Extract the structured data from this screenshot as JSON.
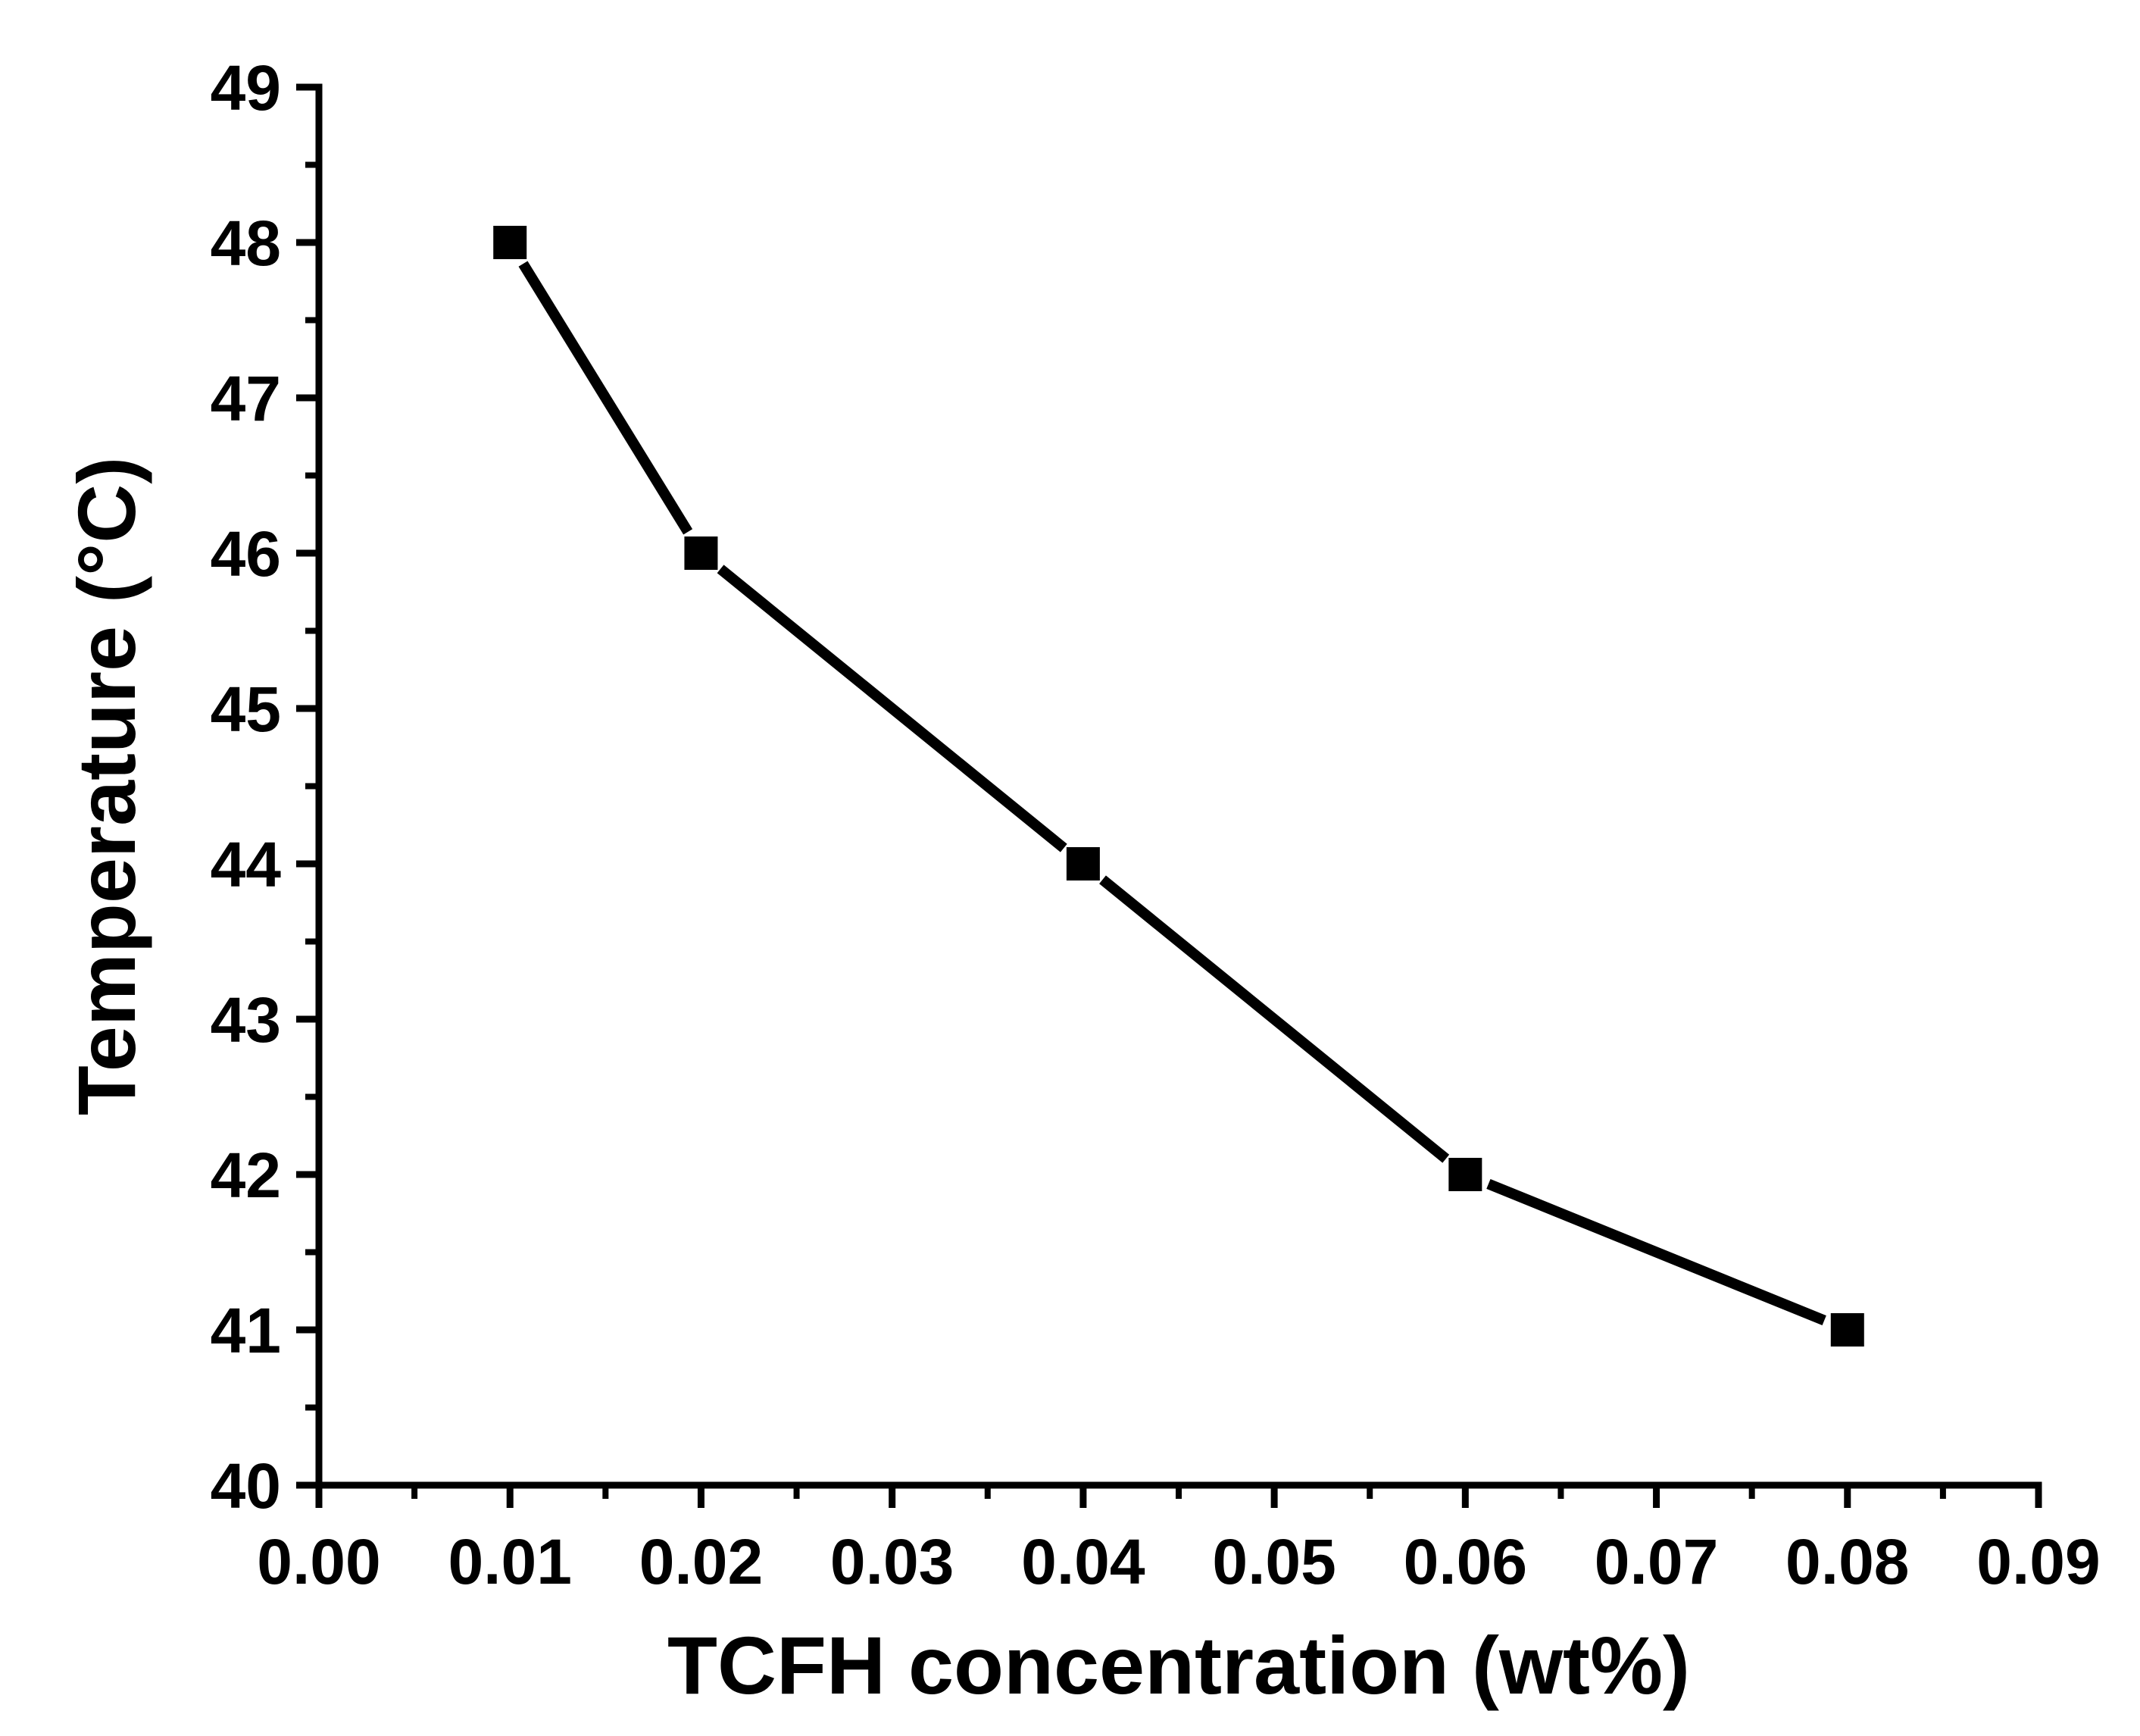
{
  "chart_data": {
    "type": "line",
    "title": "",
    "xlabel": "TCFH concentration (wt%)",
    "ylabel": "Temperature (°C)",
    "xlim": [
      0.0,
      0.09
    ],
    "ylim": [
      40,
      49
    ],
    "x_ticks": [
      "0.00",
      "0.01",
      "0.02",
      "0.03",
      "0.04",
      "0.05",
      "0.06",
      "0.07",
      "0.08",
      "0.09"
    ],
    "y_ticks": [
      "40",
      "41",
      "42",
      "43",
      "44",
      "45",
      "46",
      "47",
      "48",
      "49"
    ],
    "grid": false,
    "marker": "square",
    "series": [
      {
        "name": "Temperature",
        "color": "#000000",
        "points": [
          {
            "x": 0.01,
            "y": 48
          },
          {
            "x": 0.02,
            "y": 46
          },
          {
            "x": 0.04,
            "y": 44
          },
          {
            "x": 0.06,
            "y": 42
          },
          {
            "x": 0.08,
            "y": 41
          }
        ]
      }
    ]
  }
}
